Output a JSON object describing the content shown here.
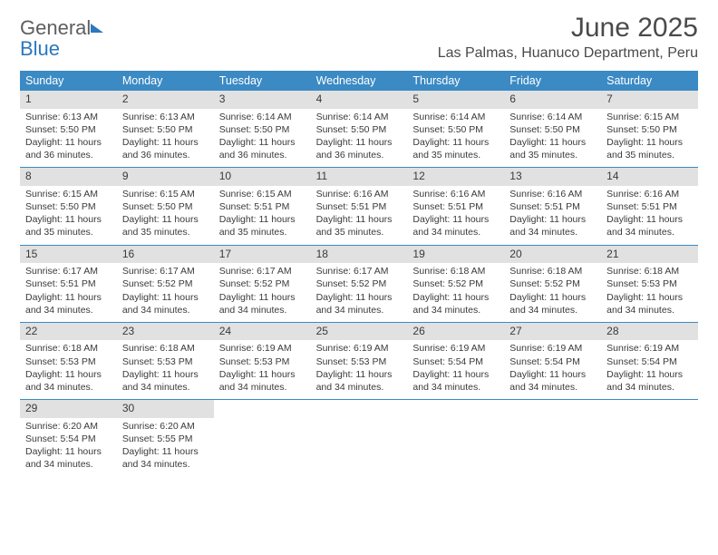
{
  "brand": {
    "part1": "General",
    "part2": "Blue"
  },
  "title": "June 2025",
  "location": "Las Palmas, Huanuco Department, Peru",
  "colors": {
    "header_bar": "#3b8ac4",
    "daynum_bg": "#e1e1e1",
    "text": "#3a3a3a",
    "brand_gray": "#5e5e5e",
    "brand_blue": "#2c78bf",
    "background": "#ffffff"
  },
  "dow": [
    "Sunday",
    "Monday",
    "Tuesday",
    "Wednesday",
    "Thursday",
    "Friday",
    "Saturday"
  ],
  "days": [
    {
      "n": "1",
      "sr": "6:13 AM",
      "ss": "5:50 PM",
      "dl": "11 hours and 36 minutes."
    },
    {
      "n": "2",
      "sr": "6:13 AM",
      "ss": "5:50 PM",
      "dl": "11 hours and 36 minutes."
    },
    {
      "n": "3",
      "sr": "6:14 AM",
      "ss": "5:50 PM",
      "dl": "11 hours and 36 minutes."
    },
    {
      "n": "4",
      "sr": "6:14 AM",
      "ss": "5:50 PM",
      "dl": "11 hours and 36 minutes."
    },
    {
      "n": "5",
      "sr": "6:14 AM",
      "ss": "5:50 PM",
      "dl": "11 hours and 35 minutes."
    },
    {
      "n": "6",
      "sr": "6:14 AM",
      "ss": "5:50 PM",
      "dl": "11 hours and 35 minutes."
    },
    {
      "n": "7",
      "sr": "6:15 AM",
      "ss": "5:50 PM",
      "dl": "11 hours and 35 minutes."
    },
    {
      "n": "8",
      "sr": "6:15 AM",
      "ss": "5:50 PM",
      "dl": "11 hours and 35 minutes."
    },
    {
      "n": "9",
      "sr": "6:15 AM",
      "ss": "5:50 PM",
      "dl": "11 hours and 35 minutes."
    },
    {
      "n": "10",
      "sr": "6:15 AM",
      "ss": "5:51 PM",
      "dl": "11 hours and 35 minutes."
    },
    {
      "n": "11",
      "sr": "6:16 AM",
      "ss": "5:51 PM",
      "dl": "11 hours and 35 minutes."
    },
    {
      "n": "12",
      "sr": "6:16 AM",
      "ss": "5:51 PM",
      "dl": "11 hours and 34 minutes."
    },
    {
      "n": "13",
      "sr": "6:16 AM",
      "ss": "5:51 PM",
      "dl": "11 hours and 34 minutes."
    },
    {
      "n": "14",
      "sr": "6:16 AM",
      "ss": "5:51 PM",
      "dl": "11 hours and 34 minutes."
    },
    {
      "n": "15",
      "sr": "6:17 AM",
      "ss": "5:51 PM",
      "dl": "11 hours and 34 minutes."
    },
    {
      "n": "16",
      "sr": "6:17 AM",
      "ss": "5:52 PM",
      "dl": "11 hours and 34 minutes."
    },
    {
      "n": "17",
      "sr": "6:17 AM",
      "ss": "5:52 PM",
      "dl": "11 hours and 34 minutes."
    },
    {
      "n": "18",
      "sr": "6:17 AM",
      "ss": "5:52 PM",
      "dl": "11 hours and 34 minutes."
    },
    {
      "n": "19",
      "sr": "6:18 AM",
      "ss": "5:52 PM",
      "dl": "11 hours and 34 minutes."
    },
    {
      "n": "20",
      "sr": "6:18 AM",
      "ss": "5:52 PM",
      "dl": "11 hours and 34 minutes."
    },
    {
      "n": "21",
      "sr": "6:18 AM",
      "ss": "5:53 PM",
      "dl": "11 hours and 34 minutes."
    },
    {
      "n": "22",
      "sr": "6:18 AM",
      "ss": "5:53 PM",
      "dl": "11 hours and 34 minutes."
    },
    {
      "n": "23",
      "sr": "6:18 AM",
      "ss": "5:53 PM",
      "dl": "11 hours and 34 minutes."
    },
    {
      "n": "24",
      "sr": "6:19 AM",
      "ss": "5:53 PM",
      "dl": "11 hours and 34 minutes."
    },
    {
      "n": "25",
      "sr": "6:19 AM",
      "ss": "5:53 PM",
      "dl": "11 hours and 34 minutes."
    },
    {
      "n": "26",
      "sr": "6:19 AM",
      "ss": "5:54 PM",
      "dl": "11 hours and 34 minutes."
    },
    {
      "n": "27",
      "sr": "6:19 AM",
      "ss": "5:54 PM",
      "dl": "11 hours and 34 minutes."
    },
    {
      "n": "28",
      "sr": "6:19 AM",
      "ss": "5:54 PM",
      "dl": "11 hours and 34 minutes."
    },
    {
      "n": "29",
      "sr": "6:20 AM",
      "ss": "5:54 PM",
      "dl": "11 hours and 34 minutes."
    },
    {
      "n": "30",
      "sr": "6:20 AM",
      "ss": "5:55 PM",
      "dl": "11 hours and 34 minutes."
    }
  ],
  "labels": {
    "sunrise": "Sunrise:",
    "sunset": "Sunset:",
    "daylight": "Daylight:"
  },
  "layout": {
    "first_weekday_index": 0,
    "weeks": 5,
    "cols": 7
  }
}
